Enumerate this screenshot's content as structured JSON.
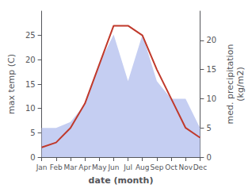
{
  "chart_data": {
    "type": "line",
    "xlabel": "date (month)",
    "ylabel": "max temp (C)",
    "y2label": "med. precipitation\n(kg/m2)",
    "categories": [
      "Jan",
      "Feb",
      "Mar",
      "Apr",
      "May",
      "Jun",
      "Jul",
      "Aug",
      "Sep",
      "Oct",
      "Nov",
      "Dec"
    ],
    "series": [
      {
        "type": "area",
        "color": "#c5cef2",
        "axis": "y2",
        "values": [
          5,
          5,
          6,
          9,
          16,
          21,
          13,
          21,
          13,
          10,
          10,
          5
        ]
      },
      {
        "type": "line",
        "color": "#c0392b",
        "values": [
          2,
          3,
          6,
          11,
          19,
          27,
          27,
          25,
          18,
          12,
          6,
          4
        ]
      }
    ],
    "ylim": [
      0,
      30
    ],
    "yticks": [
      0,
      5,
      10,
      15,
      20,
      25
    ],
    "y2lim": [
      0,
      25
    ],
    "y2ticks": [
      0,
      5,
      10,
      15,
      20
    ],
    "grid": false
  }
}
